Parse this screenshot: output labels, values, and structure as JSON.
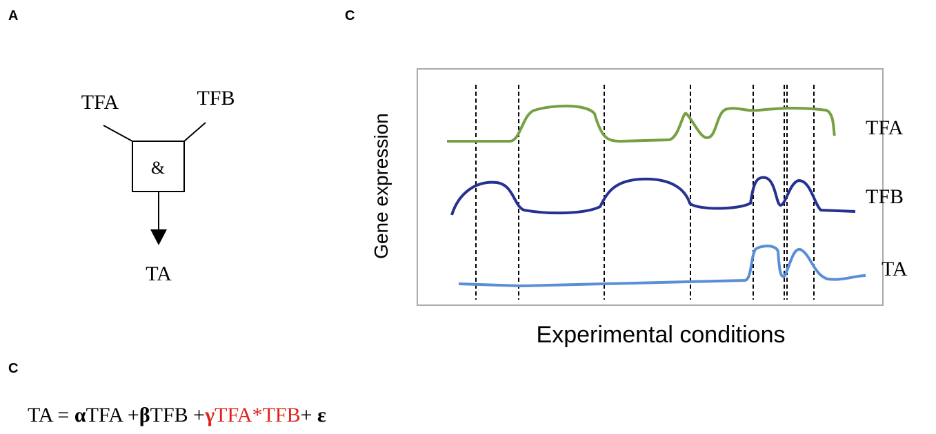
{
  "panels": [
    {
      "label": "A",
      "gate": {
        "inputs": [
          "TFA",
          "TFB"
        ],
        "operator": "&",
        "output": "TA"
      }
    },
    {
      "label": "C",
      "y_axis_label": "Gene expression",
      "x_axis_label": "Experimental conditions",
      "curve_labels": [
        "TFA",
        "TFB",
        "TA"
      ]
    },
    {
      "label": "C",
      "equation": [
        "TA = ",
        "α",
        "TFA +",
        "β",
        "TFB +",
        "γ",
        "TFA*TFB",
        "+ ",
        "ε"
      ]
    }
  ]
}
